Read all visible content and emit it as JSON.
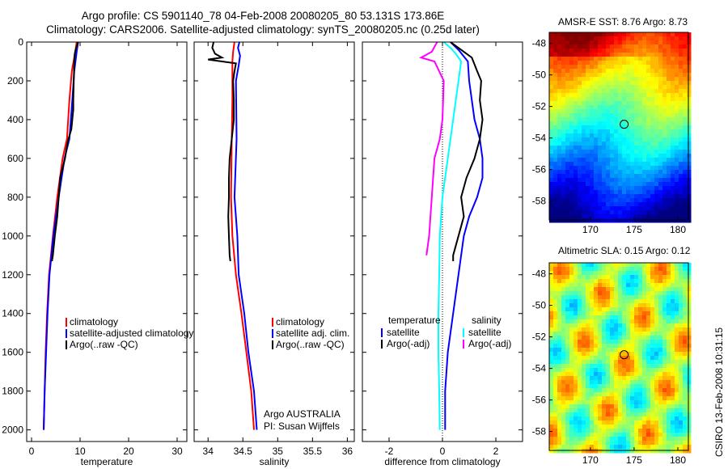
{
  "figure": {
    "title_line1": "Argo profile: CS 5901140_78 04-Feb-2008 20080205_80 53.131S 173.86E",
    "title_line2": "Climatology: CARS2006. Satellite-adjusted climatology: synTS_20080205.nc (0.25d later)",
    "side_text": "CSIRO 13-Feb-2008 10:31:15",
    "colors": {
      "climatology": "#ff0000",
      "satellite": "#0000ff",
      "argo": "#000000",
      "salinity_satellite": "#00ffff",
      "salinity_argo": "#ff00ff"
    }
  },
  "chart_data": [
    {
      "type": "line",
      "xlabel": "temperature",
      "xlim": [
        -1,
        32
      ],
      "ylim": [
        0,
        2060
      ],
      "y_inverted": true,
      "xticks": [
        0,
        10,
        20,
        30
      ],
      "yticks": [
        0,
        200,
        400,
        600,
        800,
        1000,
        1200,
        1400,
        1600,
        1800,
        2000
      ],
      "legend": {
        "placement": "lower-right",
        "entries": [
          "climatology",
          "satellite-adjusted climatology",
          "Argo(..raw -QC)"
        ]
      },
      "series": [
        {
          "name": "climatology",
          "color": "#ff0000",
          "points": [
            [
              9.3,
              0
            ],
            [
              9.0,
              50
            ],
            [
              8.3,
              150
            ],
            [
              7.8,
              300
            ],
            [
              7.3,
              500
            ],
            [
              6.4,
              600
            ],
            [
              5.3,
              800
            ],
            [
              4.4,
              1000
            ],
            [
              3.6,
              1200
            ],
            [
              3.2,
              1400
            ],
            [
              2.9,
              1600
            ],
            [
              2.7,
              1800
            ],
            [
              2.5,
              2000
            ]
          ]
        },
        {
          "name": "satellite-adjusted climatology",
          "color": "#0000ff",
          "points": [
            [
              9.6,
              0
            ],
            [
              9.3,
              50
            ],
            [
              8.8,
              150
            ],
            [
              8.4,
              300
            ],
            [
              7.8,
              500
            ],
            [
              6.8,
              600
            ],
            [
              5.6,
              800
            ],
            [
              4.5,
              1000
            ],
            [
              3.7,
              1200
            ],
            [
              3.3,
              1400
            ],
            [
              3.0,
              1600
            ],
            [
              2.7,
              1800
            ],
            [
              2.5,
              2000
            ]
          ]
        },
        {
          "name": "Argo(..raw -QC)",
          "color": "#000000",
          "points": [
            [
              9.6,
              0
            ],
            [
              9.2,
              30
            ],
            [
              8.9,
              60
            ],
            [
              8.8,
              100
            ],
            [
              8.7,
              200
            ],
            [
              8.6,
              300
            ],
            [
              8.6,
              350
            ],
            [
              8.4,
              400
            ],
            [
              8.2,
              450
            ],
            [
              7.6,
              500
            ],
            [
              7.2,
              550
            ],
            [
              6.9,
              600
            ],
            [
              6.4,
              650
            ],
            [
              5.9,
              700
            ],
            [
              5.6,
              800
            ],
            [
              5.3,
              900
            ],
            [
              4.8,
              1000
            ],
            [
              4.4,
              1100
            ],
            [
              4.2,
              1130
            ]
          ]
        }
      ]
    },
    {
      "type": "line",
      "xlabel": "salinity",
      "xlim": [
        33.8,
        36.1
      ],
      "ylim": [
        0,
        2060
      ],
      "y_inverted": true,
      "xticks": [
        34,
        34.5,
        35,
        35.5,
        36
      ],
      "xtick_labels": [
        "34",
        "34.5",
        "35",
        "35.5",
        "36"
      ],
      "legend": {
        "placement": "lower-right",
        "entries": [
          "climatology",
          "satellite adj. clim.",
          "Argo(..raw -QC)"
        ]
      },
      "annotation_lines": [
        "Argo AUSTRALIA",
        "PI: Susan Wijffels"
      ],
      "series": [
        {
          "name": "climatology",
          "color": "#ff0000",
          "points": [
            [
              34.38,
              0
            ],
            [
              34.36,
              50
            ],
            [
              34.35,
              100
            ],
            [
              34.35,
              300
            ],
            [
              34.34,
              500
            ],
            [
              34.33,
              800
            ],
            [
              34.35,
              1000
            ],
            [
              34.4,
              1200
            ],
            [
              34.48,
              1400
            ],
            [
              34.55,
              1600
            ],
            [
              34.62,
              1800
            ],
            [
              34.66,
              2000
            ]
          ]
        },
        {
          "name": "satellite adj. clim.",
          "color": "#0000ff",
          "points": [
            [
              34.45,
              0
            ],
            [
              34.43,
              30
            ],
            [
              34.46,
              70
            ],
            [
              34.44,
              120
            ],
            [
              34.4,
              200
            ],
            [
              34.41,
              500
            ],
            [
              34.38,
              800
            ],
            [
              34.42,
              1000
            ],
            [
              34.44,
              1200
            ],
            [
              34.52,
              1400
            ],
            [
              34.58,
              1600
            ],
            [
              34.66,
              1800
            ],
            [
              34.7,
              2000
            ]
          ]
        },
        {
          "name": "Argo(..raw -QC)",
          "color": "#000000",
          "points": [
            [
              34.08,
              0
            ],
            [
              34.06,
              30
            ],
            [
              34.1,
              60
            ],
            [
              34.2,
              80
            ],
            [
              34.1,
              85
            ],
            [
              34.0,
              90
            ],
            [
              34.4,
              110
            ],
            [
              34.38,
              150
            ],
            [
              34.36,
              200
            ],
            [
              34.37,
              300
            ],
            [
              34.37,
              400
            ],
            [
              34.34,
              500
            ],
            [
              34.31,
              600
            ],
            [
              34.3,
              700
            ],
            [
              34.3,
              800
            ],
            [
              34.29,
              900
            ],
            [
              34.3,
              1000
            ],
            [
              34.31,
              1100
            ],
            [
              34.32,
              1130
            ]
          ]
        }
      ]
    },
    {
      "type": "line",
      "xlabel": "difference from climatology",
      "xlim": [
        -3,
        3
      ],
      "ylim": [
        0,
        2060
      ],
      "y_inverted": true,
      "xticks": [
        -2,
        0,
        2
      ],
      "zero_line": "dotted",
      "legend": {
        "placement": "lower-center",
        "columns": [
          {
            "header": "temperature",
            "entries": [
              "satellite",
              "Argo(-adj)"
            ]
          },
          {
            "header": "salinity",
            "entries": [
              "satellite",
              "Argo(-adj)"
            ]
          }
        ]
      },
      "series": [
        {
          "name": "satellite",
          "group": "temperature",
          "color": "#0000ff",
          "points": [
            [
              0.3,
              0
            ],
            [
              0.6,
              40
            ],
            [
              0.95,
              100
            ],
            [
              1.0,
              200
            ],
            [
              1.1,
              300
            ],
            [
              1.2,
              400
            ],
            [
              1.4,
              500
            ],
            [
              1.5,
              600
            ],
            [
              1.5,
              700
            ],
            [
              1.3,
              800
            ],
            [
              1.0,
              900
            ],
            [
              0.8,
              1000
            ],
            [
              0.6,
              1200
            ],
            [
              0.4,
              1400
            ],
            [
              0.2,
              1600
            ],
            [
              0.1,
              1800
            ],
            [
              0.1,
              2000
            ]
          ]
        },
        {
          "name": "Argo(-adj)",
          "group": "temperature",
          "color": "#000000",
          "points": [
            [
              0.3,
              0
            ],
            [
              0.6,
              30
            ],
            [
              1.1,
              80
            ],
            [
              1.3,
              150
            ],
            [
              1.45,
              200
            ],
            [
              1.4,
              300
            ],
            [
              1.5,
              400
            ],
            [
              1.4,
              500
            ],
            [
              1.2,
              600
            ],
            [
              0.9,
              700
            ],
            [
              0.7,
              800
            ],
            [
              0.8,
              900
            ],
            [
              0.6,
              1000
            ],
            [
              0.4,
              1100
            ],
            [
              0.4,
              1130
            ]
          ]
        },
        {
          "name": "satellite",
          "group": "salinity",
          "color": "#00ffff",
          "points": [
            [
              0.05,
              0
            ],
            [
              0.3,
              30
            ],
            [
              0.5,
              60
            ],
            [
              0.7,
              100
            ],
            [
              0.6,
              200
            ],
            [
              0.5,
              300
            ],
            [
              0.4,
              400
            ],
            [
              0.2,
              600
            ],
            [
              0.0,
              800
            ],
            [
              -0.1,
              1000
            ],
            [
              -0.12,
              1200
            ],
            [
              -0.15,
              1400
            ],
            [
              -0.15,
              1600
            ],
            [
              -0.12,
              1800
            ],
            [
              -0.1,
              2000
            ]
          ]
        },
        {
          "name": "Argo(-adj)",
          "group": "salinity",
          "color": "#ff00ff",
          "points": [
            [
              -0.2,
              0
            ],
            [
              -0.4,
              50
            ],
            [
              -0.8,
              80
            ],
            [
              -0.3,
              100
            ],
            [
              0.05,
              200
            ],
            [
              0.0,
              400
            ],
            [
              -0.1,
              500
            ],
            [
              -0.3,
              600
            ],
            [
              -0.4,
              800
            ],
            [
              -0.5,
              1000
            ],
            [
              -0.6,
              1100
            ]
          ]
        }
      ]
    },
    {
      "type": "heatmap",
      "title": "AMSR-E SST: 8.76 Argo: 8.73",
      "xlim": [
        165.3,
        181.2
      ],
      "ylim": [
        -59.2,
        -47.3
      ],
      "xticks": [
        170,
        175,
        180
      ],
      "yticks": [
        -48,
        -50,
        -52,
        -54,
        -56,
        -58
      ],
      "argo_location": {
        "lon": 173.86,
        "lat": -53.131
      },
      "colormap": "jet"
    },
    {
      "type": "heatmap",
      "title": "Altimetric SLA: 0.15 Argo: 0.12",
      "xlim": [
        165.3,
        181.2
      ],
      "ylim": [
        -59.2,
        -47.3
      ],
      "xticks": [
        170,
        175,
        180
      ],
      "yticks": [
        -48,
        -50,
        -52,
        -54,
        -56,
        -58
      ],
      "argo_location": {
        "lon": 173.86,
        "lat": -53.131
      },
      "colormap": "jet"
    }
  ]
}
